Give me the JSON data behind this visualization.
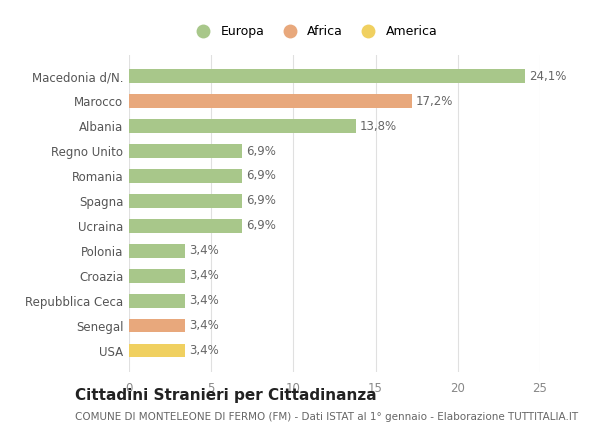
{
  "categories": [
    "Macedonia d/N.",
    "Marocco",
    "Albania",
    "Regno Unito",
    "Romania",
    "Spagna",
    "Ucraina",
    "Polonia",
    "Croazia",
    "Repubblica Ceca",
    "Senegal",
    "USA"
  ],
  "values": [
    24.1,
    17.2,
    13.8,
    6.9,
    6.9,
    6.9,
    6.9,
    3.4,
    3.4,
    3.4,
    3.4,
    3.4
  ],
  "continents": [
    "Europa",
    "Africa",
    "Europa",
    "Europa",
    "Europa",
    "Europa",
    "Europa",
    "Europa",
    "Europa",
    "Europa",
    "Africa",
    "America"
  ],
  "colors": {
    "Europa": "#a8c78a",
    "Africa": "#e8a87c",
    "America": "#f0d060"
  },
  "title": "Cittadini Stranieri per Cittadinanza",
  "subtitle": "COMUNE DI MONTELEONE DI FERMO (FM) - Dati ISTAT al 1° gennaio - Elaborazione TUTTITALIA.IT",
  "xlim": [
    0,
    25
  ],
  "xticks": [
    0,
    5,
    10,
    15,
    20,
    25
  ],
  "background_color": "#ffffff",
  "grid_color": "#e0e0e0",
  "label_fontsize": 8.5,
  "value_fontsize": 8.5,
  "title_fontsize": 11,
  "subtitle_fontsize": 7.5,
  "legend_fontsize": 9,
  "bar_height": 0.55
}
